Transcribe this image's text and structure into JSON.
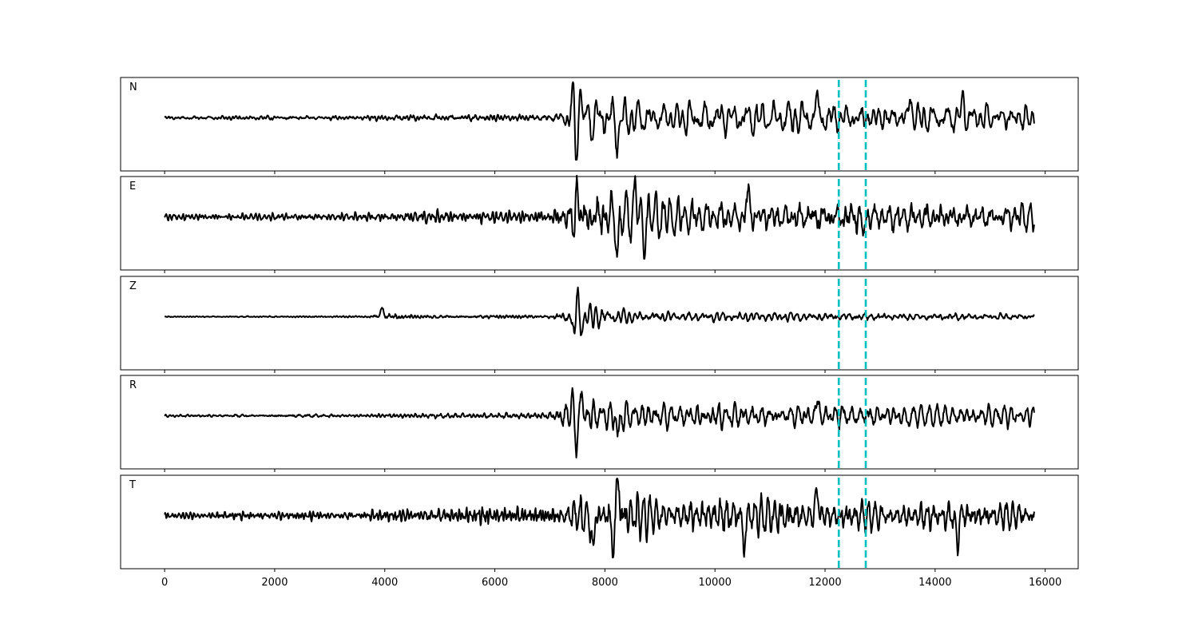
{
  "chart_data": {
    "type": "line",
    "xlim": [
      -800,
      16600
    ],
    "x_ticks": [
      0,
      2000,
      4000,
      6000,
      8000,
      10000,
      12000,
      14000,
      16000
    ],
    "x_tick_labels": [
      "0",
      "2000",
      "4000",
      "6000",
      "8000",
      "10000",
      "12000",
      "14000",
      "16000"
    ],
    "markers": [
      12250,
      12740
    ],
    "marker_color": "#00bfbf",
    "trace_color": "#000000",
    "grid": false,
    "panels": [
      {
        "name": "N",
        "seed": 11,
        "noise": [
          [
            0,
            0.06
          ],
          [
            3500,
            0.08
          ],
          [
            5000,
            0.11
          ],
          [
            7000,
            0.13
          ],
          [
            7400,
            0.4
          ],
          [
            7800,
            0.55
          ],
          [
            8200,
            0.5
          ],
          [
            9000,
            0.35
          ],
          [
            10000,
            0.4
          ],
          [
            12000,
            0.38
          ],
          [
            14000,
            0.33
          ],
          [
            15800,
            0.3
          ]
        ],
        "spikes": [
          [
            7480,
            -0.95
          ],
          [
            7420,
            0.55
          ],
          [
            7550,
            0.6
          ],
          [
            8230,
            -0.55
          ],
          [
            11850,
            0.45
          ],
          [
            13550,
            0.5
          ],
          [
            14500,
            0.4
          ]
        ]
      },
      {
        "name": "E",
        "seed": 23,
        "noise": [
          [
            0,
            0.09
          ],
          [
            3500,
            0.1
          ],
          [
            5000,
            0.16
          ],
          [
            7000,
            0.18
          ],
          [
            7400,
            0.5
          ],
          [
            8000,
            0.7
          ],
          [
            8600,
            0.6
          ],
          [
            9500,
            0.45
          ],
          [
            10500,
            0.55
          ],
          [
            12000,
            0.5
          ],
          [
            14000,
            0.42
          ],
          [
            15800,
            0.38
          ]
        ],
        "spikes": [
          [
            7480,
            0.95
          ],
          [
            7440,
            -0.55
          ],
          [
            8230,
            -0.8
          ],
          [
            8560,
            0.75
          ],
          [
            8700,
            -0.6
          ],
          [
            10600,
            0.6
          ],
          [
            12700,
            -0.4
          ]
        ]
      },
      {
        "name": "Z",
        "seed": 37,
        "noise": [
          [
            0,
            0.02
          ],
          [
            3600,
            0.03
          ],
          [
            3900,
            0.12
          ],
          [
            5000,
            0.07
          ],
          [
            7000,
            0.06
          ],
          [
            7400,
            0.25
          ],
          [
            7700,
            0.28
          ],
          [
            8500,
            0.16
          ],
          [
            10000,
            0.12
          ],
          [
            12000,
            0.11
          ],
          [
            15800,
            0.09
          ]
        ],
        "spikes": [
          [
            7500,
            0.98
          ],
          [
            7460,
            -0.75
          ],
          [
            7560,
            -0.45
          ],
          [
            3950,
            0.22
          ]
        ]
      },
      {
        "name": "R",
        "seed": 53,
        "noise": [
          [
            0,
            0.06
          ],
          [
            3500,
            0.08
          ],
          [
            5000,
            0.1
          ],
          [
            7000,
            0.13
          ],
          [
            7400,
            0.4
          ],
          [
            7800,
            0.48
          ],
          [
            8300,
            0.45
          ],
          [
            9000,
            0.35
          ],
          [
            10000,
            0.38
          ],
          [
            12000,
            0.36
          ],
          [
            14000,
            0.32
          ],
          [
            15800,
            0.3
          ]
        ],
        "spikes": [
          [
            7480,
            -0.95
          ],
          [
            7420,
            0.5
          ],
          [
            7560,
            0.55
          ],
          [
            8240,
            -0.5
          ],
          [
            13550,
            -0.55
          ],
          [
            13560,
            0.45
          ],
          [
            11860,
            0.4
          ]
        ]
      },
      {
        "name": "T",
        "seed": 71,
        "noise": [
          [
            0,
            0.1
          ],
          [
            4000,
            0.12
          ],
          [
            4100,
            0.22
          ],
          [
            6000,
            0.2
          ],
          [
            7200,
            0.22
          ],
          [
            7600,
            0.55
          ],
          [
            8200,
            0.75
          ],
          [
            8700,
            0.6
          ],
          [
            9500,
            0.45
          ],
          [
            10400,
            0.65
          ],
          [
            11000,
            0.5
          ],
          [
            12000,
            0.45
          ],
          [
            14000,
            0.42
          ],
          [
            15800,
            0.4
          ]
        ],
        "spikes": [
          [
            8230,
            0.98
          ],
          [
            8150,
            -0.95
          ],
          [
            7780,
            -0.85
          ],
          [
            10530,
            -0.8
          ],
          [
            11850,
            0.62
          ],
          [
            14400,
            -0.6
          ]
        ]
      }
    ]
  }
}
